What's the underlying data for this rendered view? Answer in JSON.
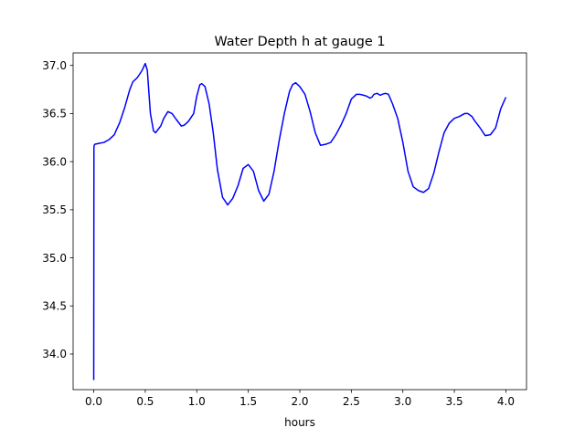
{
  "chart_data": {
    "type": "line",
    "title": "Water Depth h at gauge 1",
    "xlabel": "hours",
    "ylabel": "",
    "xlim": [
      -0.2,
      4.2
    ],
    "ylim": [
      33.63,
      37.13
    ],
    "x_ticks": [
      0.0,
      0.5,
      1.0,
      1.5,
      2.0,
      2.5,
      3.0,
      3.5,
      4.0
    ],
    "x_tick_labels": [
      "0.0",
      "0.5",
      "1.0",
      "1.5",
      "2.0",
      "2.5",
      "3.0",
      "3.5",
      "4.0"
    ],
    "y_ticks": [
      34.0,
      34.5,
      35.0,
      35.5,
      36.0,
      36.5,
      37.0
    ],
    "y_tick_labels": [
      "34.0",
      "34.5",
      "35.0",
      "35.5",
      "36.0",
      "36.5",
      "37.0"
    ],
    "grid": false,
    "line_color": "#0000ff",
    "series": [
      {
        "x": [
          0.0,
          0.002,
          0.005,
          0.01,
          0.05,
          0.1,
          0.15,
          0.18,
          0.2,
          0.22,
          0.25,
          0.3,
          0.35,
          0.38,
          0.42,
          0.44,
          0.47,
          0.5,
          0.52,
          0.55,
          0.58,
          0.6,
          0.65,
          0.68,
          0.72,
          0.76,
          0.8,
          0.85,
          0.88,
          0.92,
          0.97,
          1.0,
          1.03,
          1.05,
          1.08,
          1.12,
          1.16,
          1.2,
          1.25,
          1.3,
          1.35,
          1.4,
          1.45,
          1.5,
          1.55,
          1.6,
          1.65,
          1.7,
          1.75,
          1.8,
          1.85,
          1.9,
          1.93,
          1.96,
          2.0,
          2.05,
          2.1,
          2.15,
          2.2,
          2.25,
          2.3,
          2.35,
          2.4,
          2.45,
          2.5,
          2.55,
          2.58,
          2.62,
          2.65,
          2.68,
          2.7,
          2.72,
          2.75,
          2.78,
          2.8,
          2.83,
          2.86,
          2.9,
          2.95,
          3.0,
          3.05,
          3.1,
          3.15,
          3.2,
          3.25,
          3.3,
          3.35,
          3.4,
          3.45,
          3.5,
          3.55,
          3.6,
          3.63,
          3.67,
          3.7,
          3.75,
          3.8,
          3.85,
          3.9,
          3.95,
          4.0
        ],
        "y": [
          33.73,
          36.15,
          36.17,
          36.18,
          36.19,
          36.2,
          36.23,
          36.26,
          36.28,
          36.33,
          36.4,
          36.56,
          36.75,
          36.83,
          36.87,
          36.9,
          36.95,
          37.02,
          36.95,
          36.5,
          36.32,
          36.3,
          36.37,
          36.45,
          36.52,
          36.5,
          36.44,
          36.37,
          36.38,
          36.42,
          36.5,
          36.68,
          36.8,
          36.81,
          36.78,
          36.6,
          36.3,
          35.92,
          35.63,
          35.55,
          35.62,
          35.75,
          35.93,
          35.97,
          35.9,
          35.7,
          35.59,
          35.66,
          35.9,
          36.22,
          36.5,
          36.73,
          36.8,
          36.82,
          36.78,
          36.7,
          36.52,
          36.3,
          36.17,
          36.18,
          36.2,
          36.28,
          36.38,
          36.5,
          36.65,
          36.7,
          36.7,
          36.69,
          36.68,
          36.66,
          36.67,
          36.7,
          36.71,
          36.69,
          36.7,
          36.71,
          36.7,
          36.6,
          36.45,
          36.2,
          35.9,
          35.74,
          35.7,
          35.68,
          35.72,
          35.88,
          36.1,
          36.3,
          36.4,
          36.45,
          36.47,
          36.5,
          36.5,
          36.47,
          36.42,
          36.35,
          36.27,
          36.28,
          36.35,
          36.55,
          36.67
        ]
      }
    ]
  }
}
